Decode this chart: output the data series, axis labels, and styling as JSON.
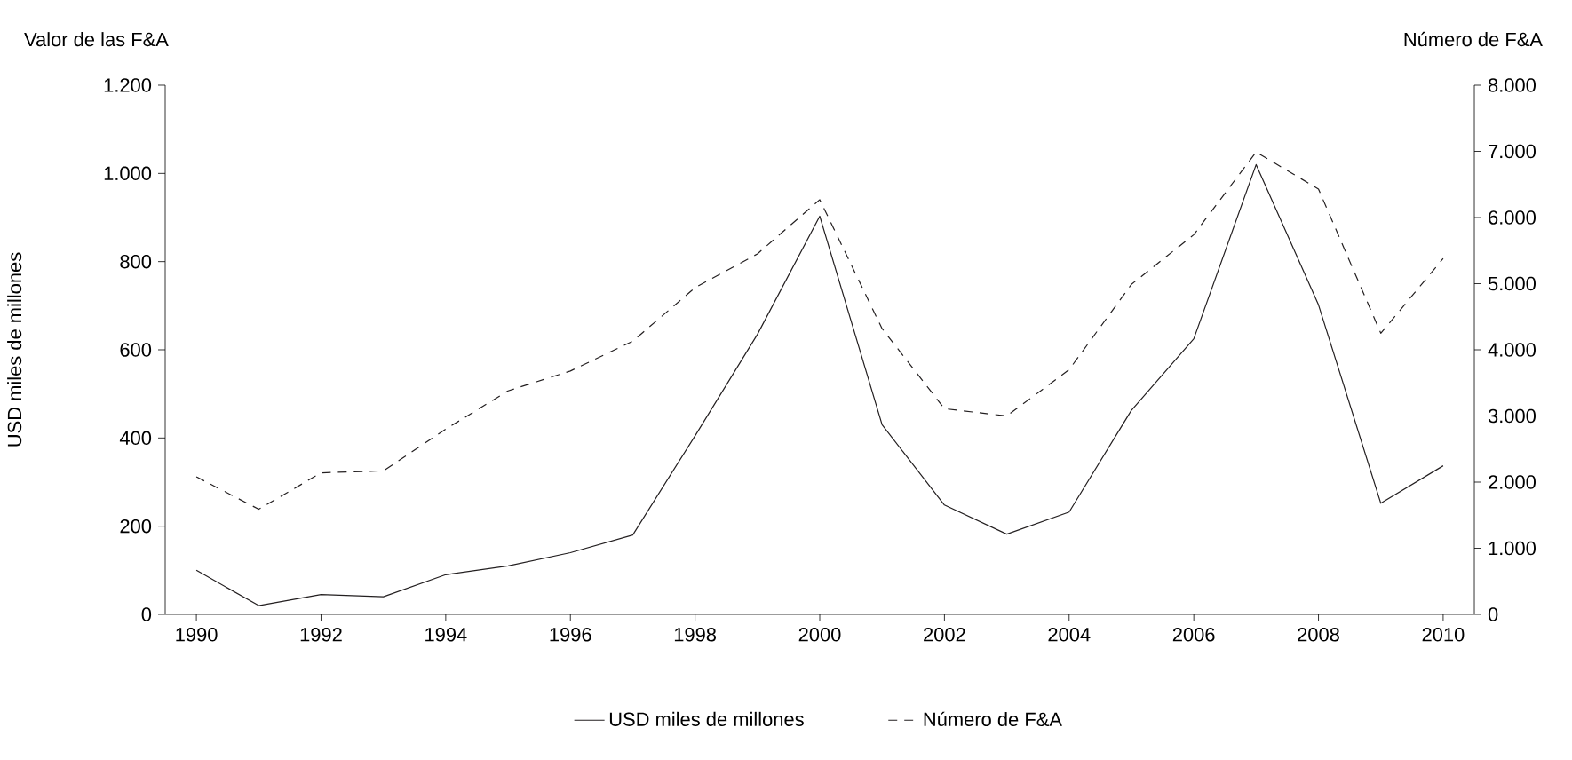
{
  "chart_data": {
    "type": "line",
    "annotations": [
      "Valor de las F&A"
    ],
    "ylabel": "USD miles de millones",
    "y2label": "Número de F&A",
    "x": [
      1990,
      1991,
      1992,
      1993,
      1994,
      1995,
      1996,
      1997,
      1998,
      1999,
      2000,
      2001,
      2002,
      2003,
      2004,
      2005,
      2006,
      2007,
      2008,
      2009,
      2010
    ],
    "xlim": [
      1989.5,
      2010.5
    ],
    "xticks": [
      {
        "value": 1990,
        "label": "1990"
      },
      {
        "value": 1992,
        "label": "1992"
      },
      {
        "value": 1994,
        "label": "1994"
      },
      {
        "value": 1996,
        "label": "1996"
      },
      {
        "value": 1998,
        "label": "1998"
      },
      {
        "value": 2000,
        "label": "2000"
      },
      {
        "value": 2002,
        "label": "2002"
      },
      {
        "value": 2004,
        "label": "2004"
      },
      {
        "value": 2006,
        "label": "2006"
      },
      {
        "value": 2008,
        "label": "2008"
      },
      {
        "value": 2010,
        "label": "2010"
      }
    ],
    "ylim": [
      0,
      1200
    ],
    "yticks": [
      0,
      200,
      400,
      600,
      800,
      {
        "value": 1000,
        "label": "1.000"
      },
      {
        "value": 1200,
        "label": "1.200"
      }
    ],
    "y2lim": [
      0,
      8000
    ],
    "y2ticks": [
      0,
      {
        "value": 1000,
        "label": "1.000"
      },
      {
        "value": 2000,
        "label": "2.000"
      },
      {
        "value": 3000,
        "label": "3.000"
      },
      {
        "value": 4000,
        "label": "4.000"
      },
      {
        "value": 5000,
        "label": "5.000"
      },
      {
        "value": 6000,
        "label": "6.000"
      },
      {
        "value": 7000,
        "label": "7.000"
      },
      {
        "value": 8000,
        "label": "8.000"
      }
    ],
    "series": [
      {
        "name": "USD miles de millones",
        "color": "#231f20",
        "line_style": "solid",
        "values": [
          100,
          20,
          45,
          40,
          90,
          110,
          140,
          180,
          405,
          635,
          903,
          430,
          248,
          182,
          232,
          463,
          625,
          1020,
          702,
          252,
          337
        ]
      },
      {
        "name": "Número de F&A",
        "color": "#231f20",
        "line_style": "dashed",
        "axis": "y2",
        "values": [
          2080,
          1590,
          2140,
          2170,
          2800,
          3380,
          3680,
          4130,
          4940,
          5450,
          6270,
          4320,
          3110,
          3000,
          3700,
          4990,
          5740,
          6990,
          6430,
          4250,
          5380
        ]
      }
    ],
    "grid": false,
    "marker": "none",
    "legend": "bottom"
  }
}
